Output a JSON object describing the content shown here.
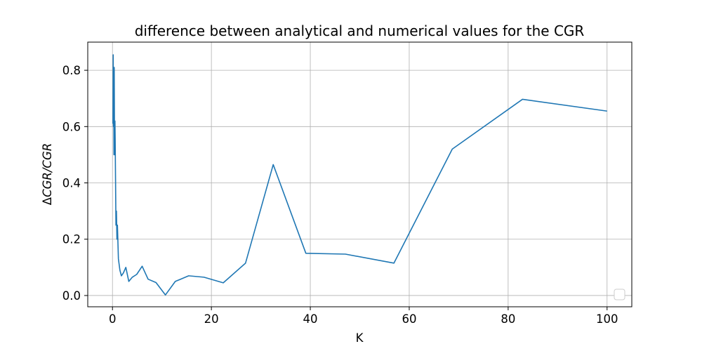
{
  "chart_data": {
    "type": "line",
    "title": "difference between analytical and numerical values for the CGR",
    "xlabel": "K",
    "ylabel_prefix": "Δ",
    "ylabel_main": "CGR/CGR",
    "xlim": [
      -5,
      105
    ],
    "ylim": [
      -0.04,
      0.9
    ],
    "xticks": [
      0,
      20,
      40,
      60,
      80,
      100
    ],
    "yticks": [
      0.0,
      0.2,
      0.4,
      0.6,
      0.8
    ],
    "xtick_labels": [
      "0",
      "20",
      "40",
      "60",
      "80",
      "100"
    ],
    "ytick_labels": [
      "0.0",
      "0.2",
      "0.4",
      "0.6",
      "0.8"
    ],
    "grid": true,
    "legend": "lower-right",
    "series": [
      {
        "color": "#1f77b4",
        "x": [
          0.1,
          0.15,
          0.2,
          0.25,
          0.3,
          0.35,
          0.4,
          0.45,
          0.5,
          0.55,
          0.6,
          0.65,
          0.7,
          0.8,
          0.9,
          1.0,
          1.2,
          1.5,
          1.8,
          2.2,
          2.7,
          3.3,
          4.0,
          4.9,
          6.0,
          7.2,
          8.8,
          10.7,
          12.7,
          15.4,
          18.5,
          22.4,
          26.9,
          32.5,
          39.1,
          47.1,
          56.9,
          68.7,
          82.9,
          100.0
        ],
        "y": [
          0.61,
          0.855,
          0.6,
          0.81,
          0.5,
          0.81,
          0.6,
          0.5,
          0.62,
          0.55,
          0.45,
          0.35,
          0.25,
          0.3,
          0.2,
          0.25,
          0.13,
          0.09,
          0.07,
          0.08,
          0.1,
          0.05,
          0.065,
          0.075,
          0.104,
          0.058,
          0.046,
          0.002,
          0.05,
          0.07,
          0.065,
          0.045,
          0.115,
          0.465,
          0.15,
          0.147,
          0.115,
          0.52,
          0.697,
          0.655
        ]
      }
    ]
  }
}
